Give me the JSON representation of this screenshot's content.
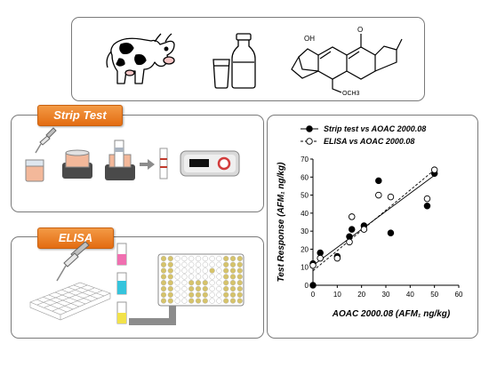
{
  "strip_test_tag": "Strip Test",
  "elisa_tag": "ELISA",
  "molecule": {
    "oh_label": "OH",
    "o_label": "O",
    "och3_label": "OCH3"
  },
  "colors": {
    "accent": "#e87722",
    "elisa_yellow": "#d6c36a",
    "red_ring": "#d23c3c"
  },
  "icons": [
    "cow-icon",
    "milk-bottle-icon",
    "milk-glass-icon",
    "aflatoxin-structure-icon",
    "pipette-icon",
    "vial-icon",
    "incubator-icon",
    "test-strip-icon",
    "strip-reader-icon",
    "microplate-icon",
    "arrow-icon"
  ],
  "chart_data": {
    "type": "scatter",
    "title": "",
    "xlabel": "AOAC 2000.08 (AFM₁ ng/kg)",
    "ylabel": "Test Response (AFM₁ ng/kg)",
    "xlim": [
      0,
      60
    ],
    "ylim": [
      0,
      70
    ],
    "x_ticks": [
      "0",
      "10",
      "20",
      "30",
      "40",
      "50",
      "60"
    ],
    "y_ticks": [
      "0",
      "10",
      "20",
      "30",
      "40",
      "50",
      "60",
      "70"
    ],
    "legend_position": "top",
    "series": [
      {
        "name": "Strip test vs AOAC 2000.08",
        "marker": "filled-circle",
        "line": "solid",
        "points": [
          [
            0,
            0
          ],
          [
            0,
            12
          ],
          [
            3,
            18
          ],
          [
            10,
            16
          ],
          [
            15,
            27
          ],
          [
            16,
            31
          ],
          [
            21,
            33
          ],
          [
            27,
            58
          ],
          [
            32,
            29
          ],
          [
            47,
            44
          ],
          [
            50,
            62
          ]
        ],
        "fit": [
          [
            0,
            11
          ],
          [
            50,
            61
          ]
        ]
      },
      {
        "name": "ELISA vs AOAC 2000.08",
        "marker": "open-circle",
        "line": "dashed",
        "points": [
          [
            0,
            11
          ],
          [
            3,
            15
          ],
          [
            10,
            15
          ],
          [
            15,
            24
          ],
          [
            16,
            38
          ],
          [
            21,
            31
          ],
          [
            27,
            50
          ],
          [
            32,
            49
          ],
          [
            47,
            48
          ],
          [
            50,
            64
          ]
        ],
        "fit": [
          [
            0,
            8
          ],
          [
            50,
            64
          ]
        ]
      }
    ]
  }
}
